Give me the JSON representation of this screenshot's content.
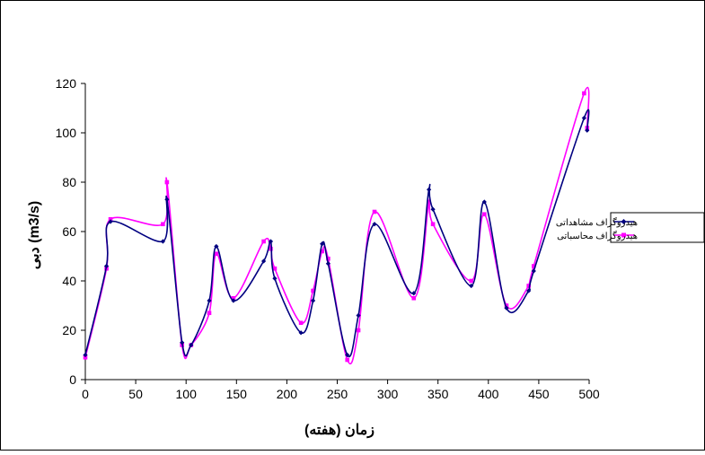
{
  "chart_data": {
    "type": "line",
    "title": "",
    "xlabel": "زمان (هفته)",
    "ylabel": "دبی (m3/s)",
    "xlim": [
      0,
      500
    ],
    "ylim": [
      0,
      120
    ],
    "x_ticks": [
      0,
      50,
      100,
      150,
      200,
      250,
      300,
      350,
      400,
      450,
      500
    ],
    "y_ticks": [
      0,
      20,
      40,
      60,
      80,
      100,
      120
    ],
    "grid": false,
    "legend_position": "right",
    "series": [
      {
        "name": "هيدروگراف مشاهداتی",
        "color": "#000080",
        "marker": "diamond",
        "x": [
          0,
          21,
          25,
          77,
          81,
          96,
          105,
          123,
          130,
          147,
          177,
          184,
          188,
          214,
          226,
          235,
          241,
          260,
          271,
          287,
          326,
          341,
          345,
          383,
          396,
          418,
          440,
          445,
          495,
          498
        ],
        "y": [
          10,
          46,
          64,
          56,
          73,
          15,
          14,
          32,
          54,
          32,
          48,
          56,
          41,
          19,
          32,
          55,
          47,
          10,
          26,
          63,
          35,
          77,
          69,
          38,
          72,
          29,
          36,
          44,
          106,
          101
        ]
      },
      {
        "name": "هيدروگراف محاسباتی",
        "color": "#ff00ff",
        "marker": "square",
        "x": [
          0,
          21,
          25,
          77,
          81,
          96,
          105,
          123,
          130,
          147,
          177,
          184,
          188,
          214,
          226,
          235,
          241,
          260,
          271,
          287,
          326,
          341,
          345,
          383,
          396,
          418,
          440,
          445,
          495,
          498
        ],
        "y": [
          9,
          45,
          65,
          63,
          80,
          14,
          14,
          27,
          51,
          33,
          56,
          53,
          45,
          23,
          36,
          52,
          49,
          8,
          20,
          68,
          33,
          72,
          63,
          40,
          67,
          30,
          38,
          46,
          116,
          102
        ]
      }
    ]
  }
}
